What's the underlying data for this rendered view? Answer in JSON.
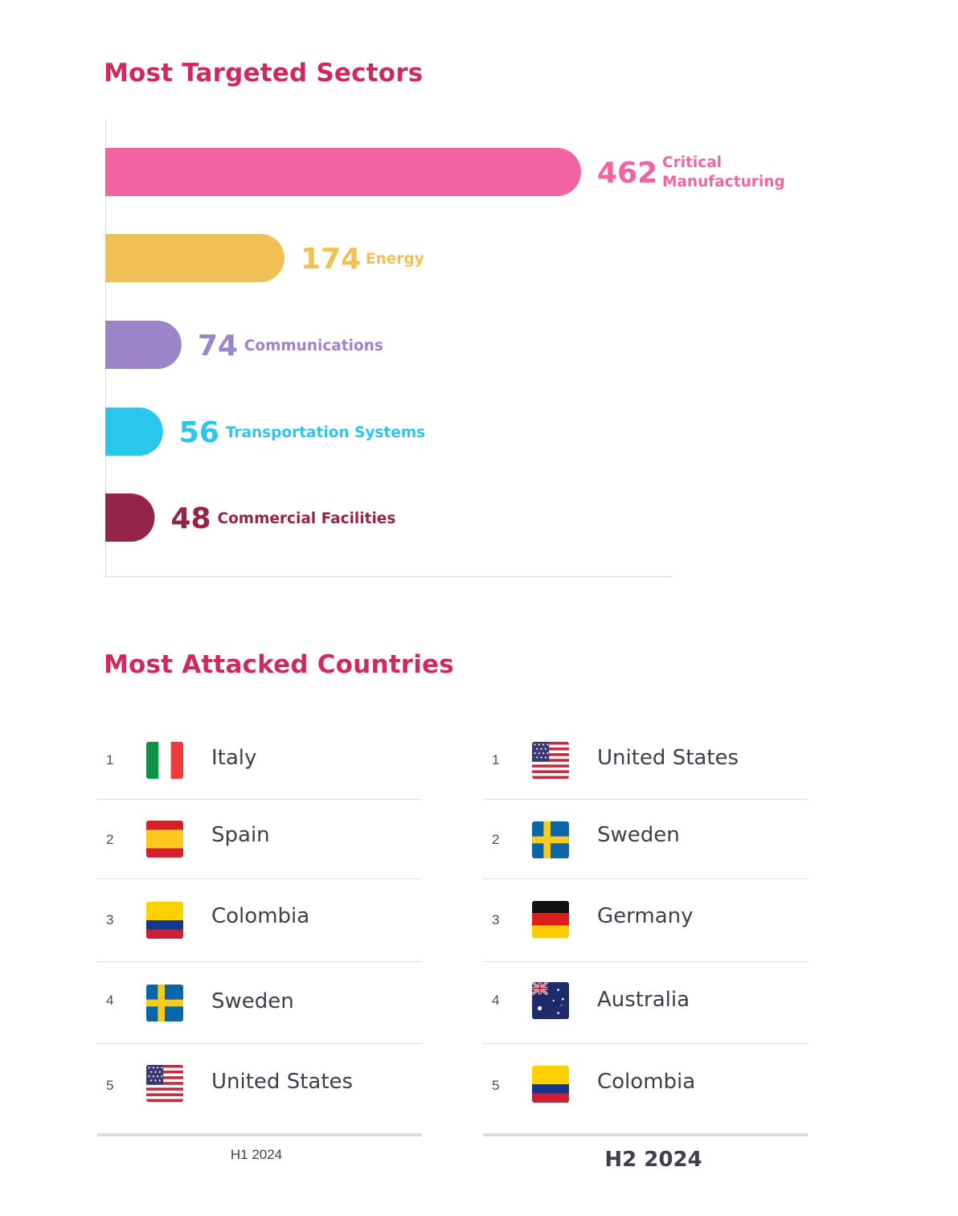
{
  "sectors": {
    "title": "Most Targeted Sectors",
    "chart_data": {
      "type": "bar",
      "orientation": "horizontal",
      "title": "Most Targeted Sectors",
      "categories": [
        "Critical Manufacturing",
        "Energy",
        "Communications",
        "Transportation Systems",
        "Commercial Facilities"
      ],
      "label_lines": [
        [
          "Critical",
          "Manufacturing"
        ],
        [
          "Energy"
        ],
        [
          "Communications"
        ],
        [
          "Transportation Systems"
        ],
        [
          "Commercial Facilities"
        ]
      ],
      "values": [
        462,
        174,
        74,
        56,
        48
      ],
      "colors": [
        "#f263a1",
        "#f0c052",
        "#9c84cb",
        "#2bc6ec",
        "#952548"
      ],
      "xlabel": "",
      "ylabel": "",
      "grid": false,
      "legend": "none"
    }
  },
  "countries": {
    "title": "Most Attacked Countries",
    "periods": [
      {
        "label": "H1 2024",
        "rows": [
          {
            "rank": "1",
            "name": "Italy",
            "flag": "italy-flag"
          },
          {
            "rank": "2",
            "name": "Spain",
            "flag": "spain-flag"
          },
          {
            "rank": "3",
            "name": "Colombia",
            "flag": "colombia-flag"
          },
          {
            "rank": "4",
            "name": "Sweden",
            "flag": "sweden-flag"
          },
          {
            "rank": "5",
            "name": "United States",
            "flag": "united-states-flag"
          }
        ]
      },
      {
        "label": "H2 2024",
        "rows": [
          {
            "rank": "1",
            "name": "United States",
            "flag": "united-states-flag"
          },
          {
            "rank": "2",
            "name": "Sweden",
            "flag": "sweden-flag"
          },
          {
            "rank": "3",
            "name": "Germany",
            "flag": "germany-flag"
          },
          {
            "rank": "4",
            "name": "Australia",
            "flag": "australia-flag"
          },
          {
            "rank": "5",
            "name": "Colombia",
            "flag": "colombia-flag"
          }
        ]
      }
    ]
  }
}
